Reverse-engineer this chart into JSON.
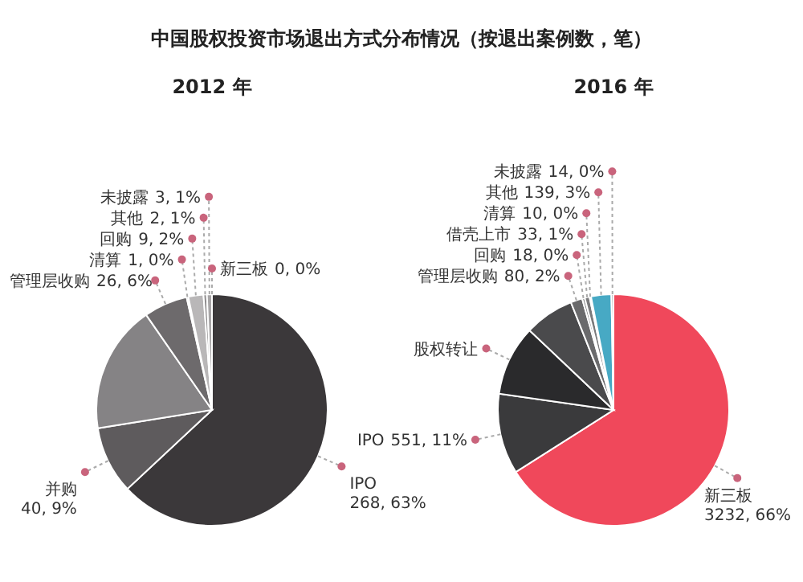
{
  "chart_data": [
    {
      "type": "pie",
      "title": "2012 年",
      "annotations": [
        "中国股权投资市场退出方式分布情况（按退出案例数，笔）"
      ],
      "categories": [
        "IPO",
        "并购",
        null,
        "管理层收购",
        "清算",
        "回购",
        "其他",
        "未披露",
        "新三板"
      ],
      "values": [
        268,
        40,
        76,
        26,
        1,
        9,
        2,
        3,
        0
      ],
      "value_labels": [
        "268, 63%",
        "40, 9%",
        null,
        "26, 6%",
        "1, 0%",
        "9, 2%",
        "2, 1%",
        "3, 1%",
        "0, 0%"
      ],
      "colors": [
        "#3b383a",
        "#5e5b5d",
        "#858385",
        "#6d6a6c",
        "#9a9899",
        "#b9b7b8",
        "#8e8c8d",
        "#a8a6a7",
        "#4aa3b8"
      ]
    },
    {
      "type": "pie",
      "title": "2016 年",
      "categories": [
        "新三板",
        "IPO",
        "股权转让",
        null,
        "管理层收购",
        "回购",
        "借壳上市",
        "清算",
        "其他",
        "未披露"
      ],
      "values": [
        3232,
        551,
        480,
        340,
        80,
        18,
        33,
        10,
        139,
        14
      ],
      "value_labels": [
        "3232, 66%",
        "551, 11%",
        null,
        null,
        "80, 2%",
        "18, 0%",
        "33, 1%",
        "10, 0%",
        "139, 3%",
        "14, 0%"
      ],
      "colors": [
        "#f0485b",
        "#3a3a3c",
        "#2a2a2c",
        "#4a4a4c",
        "#6a6a6c",
        "#8a8a8c",
        "#7a7a7c",
        "#5a5a5c",
        "#47a9c4",
        "#9a9a9c"
      ]
    }
  ]
}
